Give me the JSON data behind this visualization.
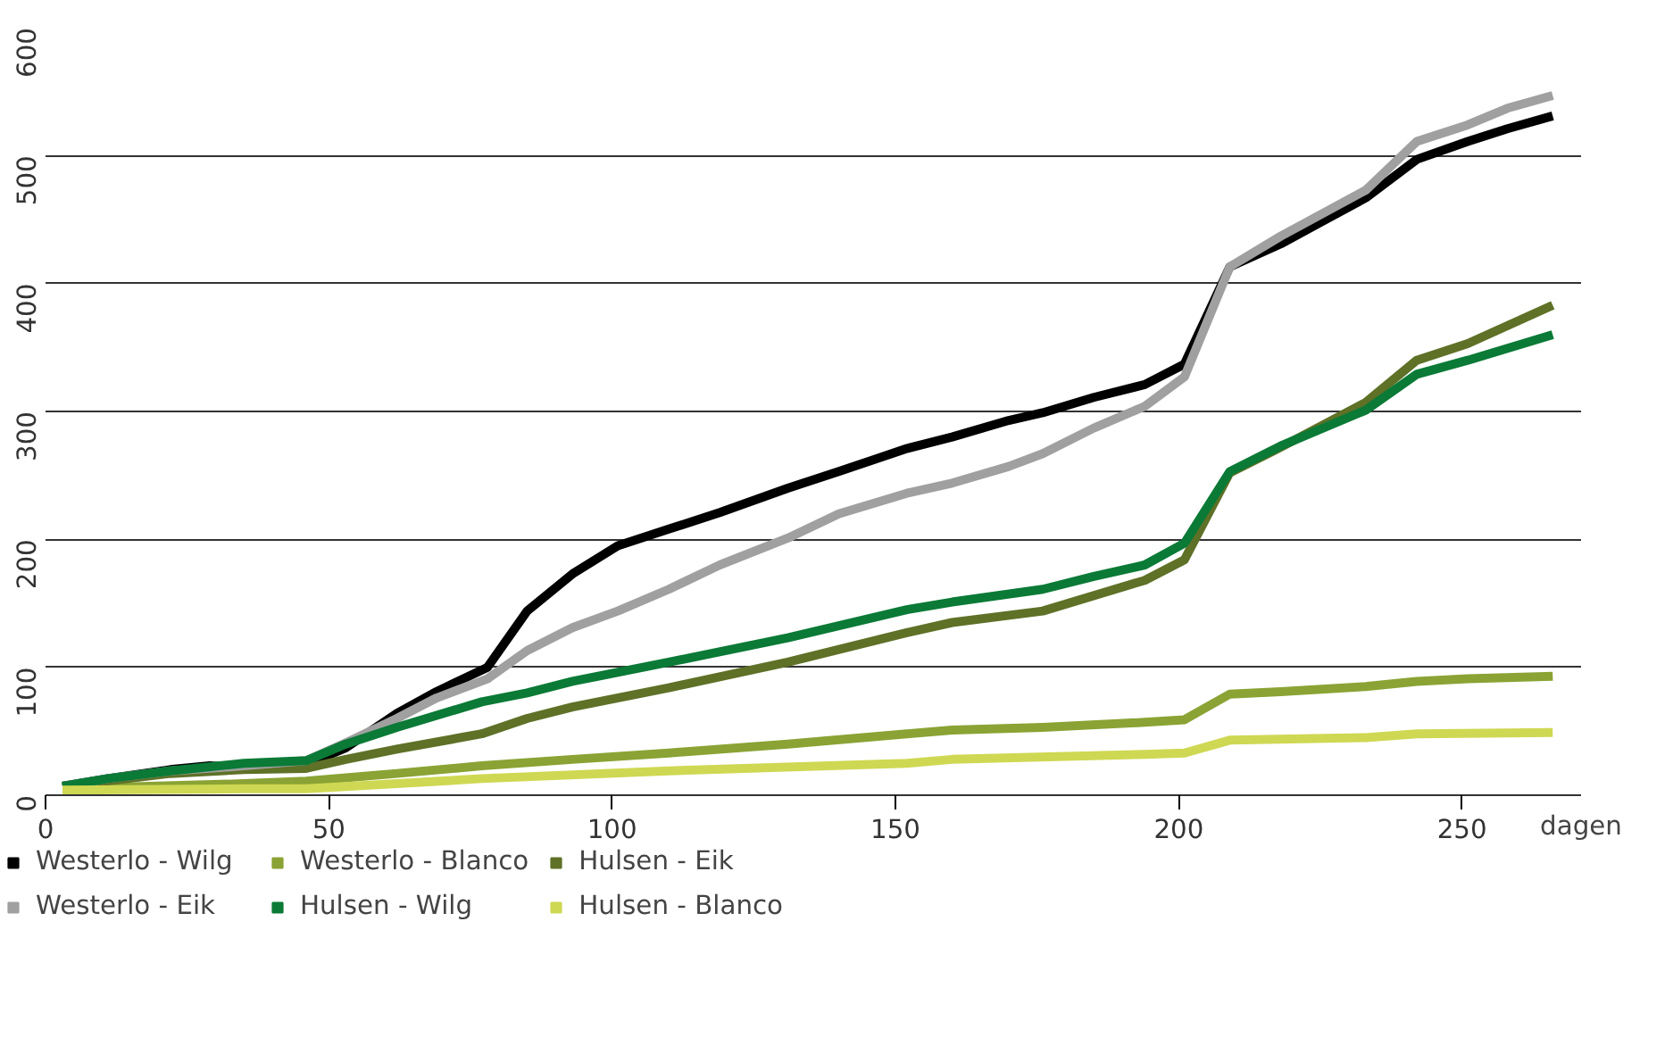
{
  "chart_data": {
    "type": "line",
    "xlabel": "dagen",
    "xlim": [
      0,
      271
    ],
    "ylim": [
      0,
      600
    ],
    "xticks": [
      0,
      50,
      100,
      150,
      200,
      250
    ],
    "yticks": [
      0,
      100,
      200,
      300,
      400,
      500,
      600
    ],
    "grid": "y",
    "legend": "bottom",
    "line_style": "solid",
    "marker": "none",
    "series": [
      {
        "name": "Westerlo - Wilg",
        "color": "#000000",
        "x": [
          3,
          11,
          22,
          29,
          35,
          46,
          53,
          62,
          69,
          78,
          85,
          93,
          101,
          110,
          119,
          131,
          140,
          152,
          160,
          170,
          176,
          185,
          194,
          201,
          209,
          218,
          233,
          242,
          251,
          258,
          266
        ],
        "values": [
          7,
          13,
          20,
          23,
          21,
          24,
          37,
          64,
          81,
          100,
          144,
          173,
          195,
          208,
          221,
          240,
          253,
          271,
          280,
          293,
          299,
          311,
          321,
          337,
          413,
          431,
          467,
          497,
          511,
          521,
          531
        ]
      },
      {
        "name": "Westerlo - Blanco",
        "color": "#8aa334",
        "x": [
          3,
          35,
          46,
          62,
          77,
          93,
          110,
          131,
          152,
          160,
          176,
          194,
          201,
          209,
          218,
          233,
          242,
          251,
          266
        ],
        "values": [
          5,
          9,
          11,
          17,
          23,
          28,
          33,
          40,
          48,
          51,
          53,
          57,
          59,
          79,
          81,
          85,
          89,
          91,
          93
        ]
      },
      {
        "name": "Hulsen - Eik",
        "color": "#5e7127",
        "x": [
          3,
          22,
          35,
          46,
          53,
          62,
          77,
          85,
          93,
          110,
          131,
          152,
          160,
          176,
          194,
          201,
          209,
          218,
          233,
          242,
          251,
          266
        ],
        "values": [
          7,
          17,
          20,
          21,
          28,
          36,
          48,
          60,
          69,
          84,
          104,
          127,
          135,
          144,
          168,
          184,
          252,
          272,
          307,
          340,
          353,
          383
        ]
      },
      {
        "name": "Westerlo - Eik",
        "color": "#a0a0a0",
        "x": [
          3,
          11,
          22,
          35,
          46,
          53,
          62,
          69,
          78,
          85,
          93,
          101,
          110,
          119,
          131,
          140,
          152,
          160,
          170,
          176,
          185,
          194,
          201,
          209,
          218,
          233,
          242,
          251,
          258,
          266
        ],
        "values": [
          7,
          13,
          19,
          23,
          27,
          41,
          60,
          76,
          91,
          113,
          131,
          144,
          161,
          180,
          201,
          220,
          236,
          244,
          257,
          267,
          287,
          304,
          327,
          413,
          437,
          473,
          511,
          524,
          537,
          547
        ]
      },
      {
        "name": "Hulsen - Wilg",
        "color": "#0a7a36",
        "x": [
          3,
          11,
          22,
          35,
          46,
          53,
          62,
          77,
          85,
          93,
          110,
          131,
          152,
          160,
          176,
          185,
          194,
          201,
          209,
          218,
          233,
          242,
          251,
          266
        ],
        "values": [
          7,
          13,
          19,
          25,
          27,
          40,
          53,
          73,
          80,
          89,
          104,
          123,
          145,
          151,
          161,
          171,
          180,
          197,
          253,
          273,
          301,
          329,
          340,
          360
        ]
      },
      {
        "name": "Hulsen - Blanco",
        "color": "#cfd852",
        "x": [
          3,
          35,
          46,
          62,
          77,
          110,
          152,
          160,
          194,
          201,
          209,
          233,
          242,
          266
        ],
        "values": [
          4,
          5,
          5,
          9,
          13,
          19,
          25,
          28,
          32,
          33,
          43,
          45,
          48,
          49
        ]
      }
    ]
  }
}
